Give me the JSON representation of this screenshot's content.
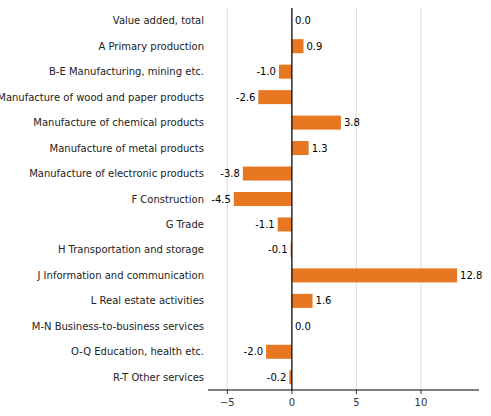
{
  "chart_data": {
    "type": "bar",
    "orientation": "horizontal",
    "categories": [
      "Value added, total",
      "A Primary production",
      "B-E Manufacturing, mining etc.",
      "Manufacture of wood and paper products",
      "Manufacture of chemical products",
      "Manufacture of metal products",
      "Manufacture of electronic products",
      "F Construction",
      "G Trade",
      "H Transportation and storage",
      "J Information and communication",
      "L Real estate activities",
      "M-N Business-to-business services",
      "O-Q Education, health etc.",
      "R-T Other services"
    ],
    "values": [
      0.0,
      0.9,
      -1.0,
      -2.6,
      3.8,
      1.3,
      -3.8,
      -4.5,
      -1.1,
      -0.1,
      12.8,
      1.6,
      0.0,
      -2.0,
      -0.2
    ],
    "value_labels": [
      "0.0",
      "0.9",
      "-1.0",
      "-2.6",
      "3.8",
      "1.3",
      "-3.8",
      "-4.5",
      "-1.1",
      "-0.1",
      "12.8",
      "1.6",
      "0.0",
      "-2.0",
      "-0.2"
    ],
    "data_labels": true,
    "color": "#E87722",
    "xlim": [
      -6.5,
      14.5
    ],
    "xticks": [
      {
        "value": -5,
        "label": "−5"
      },
      0,
      5,
      10
    ],
    "grid": true
  }
}
